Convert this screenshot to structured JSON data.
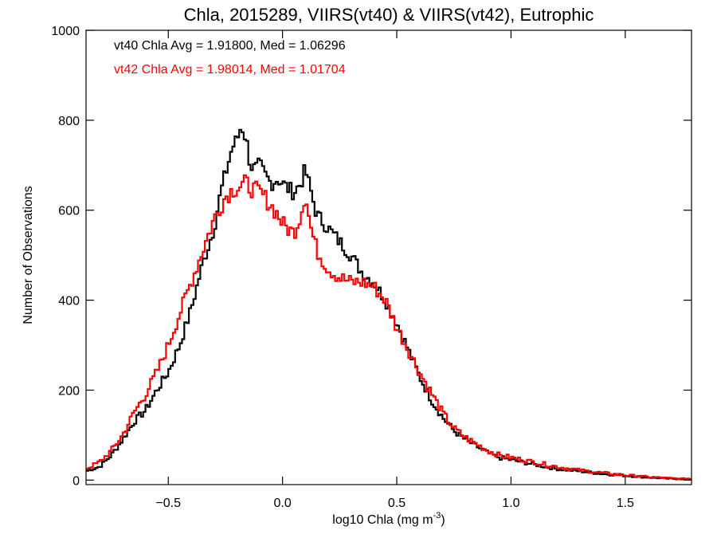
{
  "chart_data": {
    "type": "line",
    "style": "step histogram",
    "title": "Chla, 2015289, VIIRS(vt40) & VIIRS(vt42), Eutrophic",
    "xlabel": "log10 Chla (mg m",
    "xlabel_sup": "-3",
    "xlabel_end": ")",
    "ylabel": "Number of Observations",
    "xlim": [
      -0.86,
      1.79
    ],
    "ylim": [
      -10,
      1000
    ],
    "xticks": [
      -0.5,
      0.0,
      0.5,
      1.0,
      1.5
    ],
    "xtick_labels": [
      "−0.5",
      "0.0",
      "0.5",
      "1.0",
      "1.5"
    ],
    "yticks": [
      0,
      200,
      400,
      600,
      800,
      1000
    ],
    "ytick_labels": [
      "0",
      "200",
      "400",
      "600",
      "800",
      "1000"
    ],
    "grid": false,
    "legend_position": "top-left",
    "annotations": [
      {
        "text": "vt40 Chla Avg = 1.91800, Med = 1.06296",
        "color": "#000000"
      },
      {
        "text": "vt42 Chla Avg = 1.98014, Med = 1.01704",
        "color": "#ff0000"
      }
    ],
    "series": [
      {
        "color": "#000000",
        "anchors": [
          [
            -0.86,
            20
          ],
          [
            -0.8,
            30
          ],
          [
            -0.75,
            55
          ],
          [
            -0.7,
            90
          ],
          [
            -0.65,
            130
          ],
          [
            -0.6,
            155
          ],
          [
            -0.55,
            200
          ],
          [
            -0.5,
            240
          ],
          [
            -0.45,
            300
          ],
          [
            -0.4,
            380
          ],
          [
            -0.35,
            480
          ],
          [
            -0.3,
            560
          ],
          [
            -0.27,
            640
          ],
          [
            -0.25,
            680
          ],
          [
            -0.22,
            740
          ],
          [
            -0.2,
            755
          ],
          [
            -0.18,
            790
          ],
          [
            -0.16,
            760
          ],
          [
            -0.14,
            700
          ],
          [
            -0.12,
            690
          ],
          [
            -0.1,
            700
          ],
          [
            -0.08,
            680
          ],
          [
            -0.05,
            660
          ],
          [
            -0.02,
            670
          ],
          [
            0.0,
            660
          ],
          [
            0.02,
            650
          ],
          [
            0.05,
            640
          ],
          [
            0.08,
            660
          ],
          [
            0.1,
            690
          ],
          [
            0.12,
            650
          ],
          [
            0.15,
            590
          ],
          [
            0.2,
            560
          ],
          [
            0.25,
            530
          ],
          [
            0.3,
            500
          ],
          [
            0.35,
            460
          ],
          [
            0.4,
            440
          ],
          [
            0.45,
            400
          ],
          [
            0.5,
            350
          ],
          [
            0.55,
            290
          ],
          [
            0.6,
            230
          ],
          [
            0.65,
            180
          ],
          [
            0.7,
            140
          ],
          [
            0.75,
            110
          ],
          [
            0.8,
            90
          ],
          [
            0.85,
            75
          ],
          [
            0.9,
            60
          ],
          [
            0.95,
            50
          ],
          [
            1.0,
            45
          ],
          [
            1.1,
            35
          ],
          [
            1.2,
            25
          ],
          [
            1.3,
            20
          ],
          [
            1.4,
            14
          ],
          [
            1.5,
            10
          ],
          [
            1.6,
            6
          ],
          [
            1.7,
            3
          ],
          [
            1.79,
            2
          ]
        ],
        "noise_amplitude": 14
      },
      {
        "color": "#ff0000",
        "anchors": [
          [
            -0.86,
            25
          ],
          [
            -0.8,
            40
          ],
          [
            -0.75,
            65
          ],
          [
            -0.7,
            100
          ],
          [
            -0.65,
            150
          ],
          [
            -0.6,
            190
          ],
          [
            -0.55,
            240
          ],
          [
            -0.5,
            300
          ],
          [
            -0.45,
            370
          ],
          [
            -0.4,
            440
          ],
          [
            -0.35,
            510
          ],
          [
            -0.3,
            580
          ],
          [
            -0.27,
            610
          ],
          [
            -0.25,
            630
          ],
          [
            -0.22,
            645
          ],
          [
            -0.2,
            650
          ],
          [
            -0.18,
            655
          ],
          [
            -0.16,
            660
          ],
          [
            -0.14,
            650
          ],
          [
            -0.12,
            645
          ],
          [
            -0.1,
            640
          ],
          [
            -0.08,
            630
          ],
          [
            -0.05,
            610
          ],
          [
            -0.02,
            590
          ],
          [
            0.0,
            570
          ],
          [
            0.02,
            560
          ],
          [
            0.05,
            550
          ],
          [
            0.08,
            590
          ],
          [
            0.1,
            640
          ],
          [
            0.12,
            570
          ],
          [
            0.15,
            510
          ],
          [
            0.2,
            470
          ],
          [
            0.25,
            450
          ],
          [
            0.3,
            440
          ],
          [
            0.35,
            440
          ],
          [
            0.4,
            430
          ],
          [
            0.45,
            400
          ],
          [
            0.5,
            340
          ],
          [
            0.55,
            290
          ],
          [
            0.6,
            240
          ],
          [
            0.65,
            195
          ],
          [
            0.7,
            150
          ],
          [
            0.75,
            115
          ],
          [
            0.8,
            95
          ],
          [
            0.85,
            80
          ],
          [
            0.9,
            65
          ],
          [
            0.95,
            55
          ],
          [
            1.0,
            50
          ],
          [
            1.1,
            40
          ],
          [
            1.2,
            30
          ],
          [
            1.3,
            22
          ],
          [
            1.4,
            16
          ],
          [
            1.5,
            11
          ],
          [
            1.6,
            7
          ],
          [
            1.7,
            4
          ],
          [
            1.79,
            2
          ]
        ],
        "noise_amplitude": 16
      }
    ]
  }
}
